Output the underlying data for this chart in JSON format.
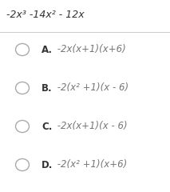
{
  "title": "-2x³ -14x² - 12x",
  "options": [
    {
      "label": "A.",
      "text": " -2x(x+1)(x+6)"
    },
    {
      "label": "B.",
      "text": " -2(x² +1)(x - 6)"
    },
    {
      "label": "C.",
      "text": " -2x(x+1)(x - 6)"
    },
    {
      "label": "D.",
      "text": " -2(x² +1)(x+6)"
    }
  ],
  "bg_color": "#ffffff",
  "title_color": "#333333",
  "label_color": "#333333",
  "text_color": "#777777",
  "circle_edge_color": "#aaaaaa",
  "divider_color": "#cccccc",
  "title_fontsize": 9.0,
  "label_fontsize": 8.5,
  "text_fontsize": 8.5,
  "fig_width": 2.13,
  "fig_height": 2.4,
  "dpi": 100
}
